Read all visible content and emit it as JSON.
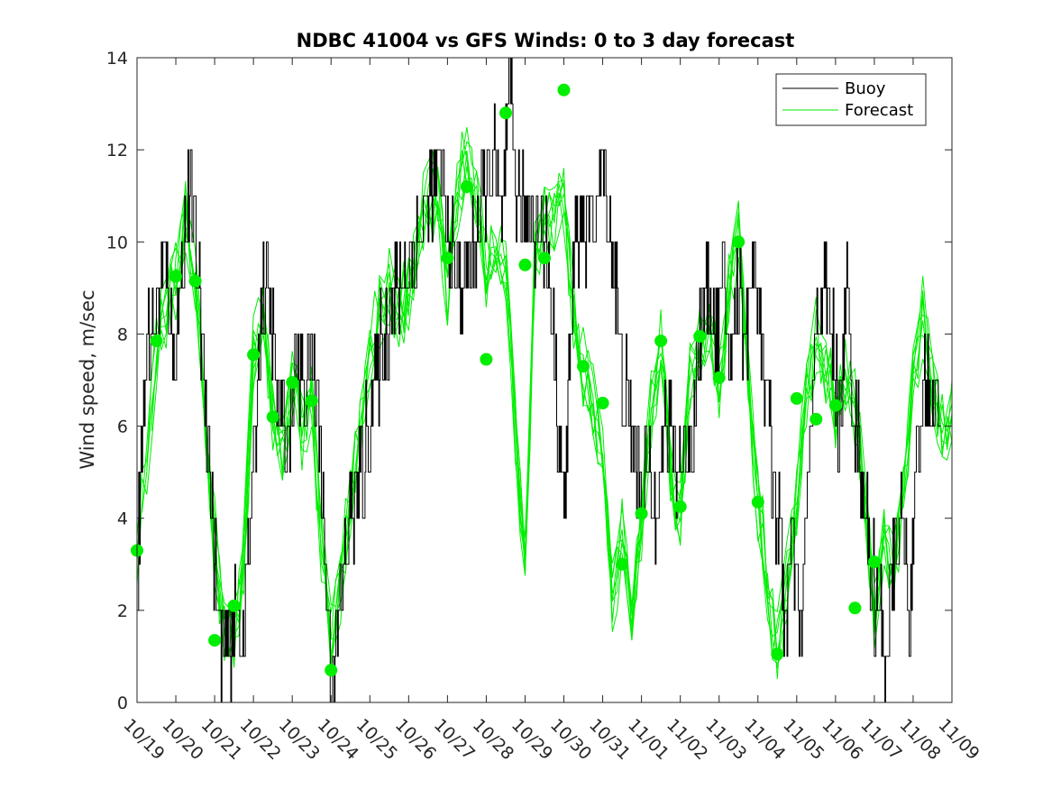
{
  "chart_data": {
    "type": "line",
    "title": "NDBC 41004 vs GFS Winds: 0 to 3 day forecast",
    "xlabel": "",
    "ylabel": "Wind speed, m/sec",
    "ylim": [
      0,
      14
    ],
    "xlim_days": [
      0,
      21
    ],
    "yticks": [
      0,
      2,
      4,
      6,
      8,
      10,
      12,
      14
    ],
    "x_tick_labels": [
      "10/19",
      "10/20",
      "10/21",
      "10/22",
      "10/23",
      "10/24",
      "10/25",
      "10/26",
      "10/27",
      "10/28",
      "10/29",
      "10/30",
      "10/31",
      "11/01",
      "11/02",
      "11/03",
      "11/04",
      "11/05",
      "11/06",
      "11/07",
      "11/08",
      "11/09"
    ],
    "grid": false,
    "legend_position": "top-right",
    "legend": [
      "Buoy",
      "Forecast"
    ],
    "colors": {
      "buoy": "#000000",
      "forecast": "#00ee00",
      "axis": "#262626"
    },
    "buoy_anchor_days": [
      0,
      0.1,
      0.25,
      0.5,
      0.75,
      0.9,
      1,
      1.2,
      1.4,
      1.6,
      1.8,
      1.95,
      2.1,
      2.3,
      2.5,
      2.7,
      2.85,
      3,
      3.15,
      3.3,
      3.5,
      3.7,
      3.9,
      4.1,
      4.3,
      4.5,
      4.7,
      4.85,
      5,
      5.15,
      5.3,
      5.5,
      5.8,
      6.1,
      6.4,
      6.7,
      7,
      7.3,
      7.5,
      7.8,
      8.1,
      8.4,
      8.7,
      8.95,
      9.2,
      9.4,
      9.6,
      9.8,
      10,
      10.3,
      10.6,
      10.8,
      11,
      11.3,
      11.5,
      11.7,
      11.85,
      12,
      12.3,
      12.5,
      12.7,
      12.9,
      13.1,
      13.3,
      13.5,
      13.7,
      13.9,
      14.1,
      14.3,
      14.5,
      14.7,
      14.9,
      15.1,
      15.3,
      15.5,
      15.7,
      15.9,
      16.1,
      16.3,
      16.5,
      16.7,
      16.9,
      17.1,
      17.3,
      17.5,
      17.7,
      17.9,
      18.1,
      18.3,
      18.5,
      18.7,
      18.9,
      19.1,
      19.3,
      19.5,
      19.7,
      19.9,
      20.1,
      20.3,
      20.5,
      20.7,
      21
    ],
    "buoy_anchor_values": [
      3,
      5,
      8,
      8.5,
      9.5,
      7.5,
      8,
      10,
      11,
      9,
      6,
      4,
      1.5,
      1,
      2,
      1.5,
      3,
      5,
      8,
      9,
      8,
      6,
      5.5,
      7.5,
      7,
      7.5,
      6,
      3,
      1,
      1.5,
      2.5,
      4,
      5,
      7,
      8,
      9,
      9.5,
      10,
      11,
      11.5,
      9.5,
      9,
      10,
      11,
      12,
      10,
      13,
      11,
      10.5,
      10.5,
      9.5,
      7,
      4,
      10.5,
      10,
      10.5,
      11,
      11.5,
      9.5,
      7,
      6,
      5,
      5,
      4,
      5.5,
      6,
      5,
      5.5,
      6,
      8,
      9,
      8,
      9,
      7.5,
      9,
      8,
      10,
      8,
      6,
      4,
      2,
      3.5,
      1.5,
      5,
      8,
      9,
      8,
      6,
      9,
      6,
      5,
      3,
      2,
      1,
      3,
      4,
      2,
      5,
      7,
      6.5,
      6
    ],
    "forecast_anchor_days": [
      0,
      0.25,
      0.5,
      0.75,
      1,
      1.25,
      1.5,
      1.75,
      2,
      2.25,
      2.5,
      2.75,
      3,
      3.25,
      3.5,
      3.75,
      4,
      4.25,
      4.5,
      4.75,
      5,
      5.25,
      5.5,
      5.75,
      6,
      6.25,
      6.5,
      6.75,
      7,
      7.25,
      7.5,
      7.75,
      8,
      8.25,
      8.5,
      8.75,
      9,
      9.25,
      9.5,
      9.75,
      10,
      10.25,
      10.5,
      10.75,
      11,
      11.25,
      11.5,
      11.75,
      12,
      12.25,
      12.5,
      12.75,
      13,
      13.25,
      13.5,
      13.75,
      14,
      14.25,
      14.5,
      14.75,
      15,
      15.25,
      15.5,
      15.75,
      16,
      16.25,
      16.5,
      16.75,
      17,
      17.25,
      17.5,
      17.75,
      18,
      18.25,
      18.5,
      18.75,
      19,
      19.25,
      19.5,
      19.75,
      20,
      20.25,
      20.5,
      20.75,
      21
    ],
    "forecast_anchor_values": [
      3.3,
      5.5,
      7.8,
      8.5,
      9.2,
      10.5,
      9.1,
      6.5,
      3.5,
      1.8,
      1.5,
      3,
      7.5,
      8.5,
      6.2,
      5.5,
      6.9,
      6,
      6.5,
      3.5,
      1.5,
      2.5,
      4.5,
      6,
      7.5,
      8.5,
      9,
      8.5,
      9,
      10,
      11,
      11,
      9,
      11,
      12,
      11,
      9.5,
      10,
      9.5,
      6,
      3,
      9.5,
      10.5,
      10.5,
      11,
      8.5,
      7.3,
      6.5,
      5.5,
      2.5,
      3.5,
      2,
      4,
      6.5,
      7.8,
      5,
      4.2,
      7,
      7.9,
      8.5,
      7,
      9,
      10.5,
      7,
      4.5,
      2.5,
      1.2,
      2.5,
      4.5,
      6.6,
      8,
      7.3,
      6.2,
      7.2,
      6.5,
      4.5,
      2.2,
      3.5,
      3,
      4.5,
      7.2,
      8.3,
      7,
      6,
      6.2
    ],
    "forecast_markers": [
      {
        "day": 0,
        "value": 3.3
      },
      {
        "day": 0.5,
        "value": 7.85
      },
      {
        "day": 1,
        "value": 9.25
      },
      {
        "day": 1.5,
        "value": 9.15
      },
      {
        "day": 2,
        "value": 1.35
      },
      {
        "day": 2.5,
        "value": 2.1
      },
      {
        "day": 3,
        "value": 7.55
      },
      {
        "day": 3.5,
        "value": 6.2
      },
      {
        "day": 4,
        "value": 6.95
      },
      {
        "day": 4.5,
        "value": 6.55
      },
      {
        "day": 5,
        "value": 0.7
      },
      {
        "day": 8,
        "value": 9.65
      },
      {
        "day": 8.5,
        "value": 11.2
      },
      {
        "day": 9,
        "value": 7.45
      },
      {
        "day": 9.5,
        "value": 12.8
      },
      {
        "day": 10,
        "value": 9.5
      },
      {
        "day": 10.5,
        "value": 9.65
      },
      {
        "day": 11,
        "value": 13.3
      },
      {
        "day": 11.5,
        "value": 7.3
      },
      {
        "day": 12,
        "value": 6.5
      },
      {
        "day": 12.5,
        "value": 3
      },
      {
        "day": 13,
        "value": 4.1
      },
      {
        "day": 13.5,
        "value": 7.85
      },
      {
        "day": 14,
        "value": 4.25
      },
      {
        "day": 14.5,
        "value": 7.95
      },
      {
        "day": 15,
        "value": 7.05
      },
      {
        "day": 15.5,
        "value": 10
      },
      {
        "day": 16,
        "value": 4.35
      },
      {
        "day": 16.5,
        "value": 1.05
      },
      {
        "day": 17,
        "value": 6.6
      },
      {
        "day": 17.5,
        "value": 6.15
      },
      {
        "day": 18,
        "value": 6.45
      },
      {
        "day": 18.5,
        "value": 2.05
      },
      {
        "day": 19,
        "value": 3.05
      }
    ]
  }
}
